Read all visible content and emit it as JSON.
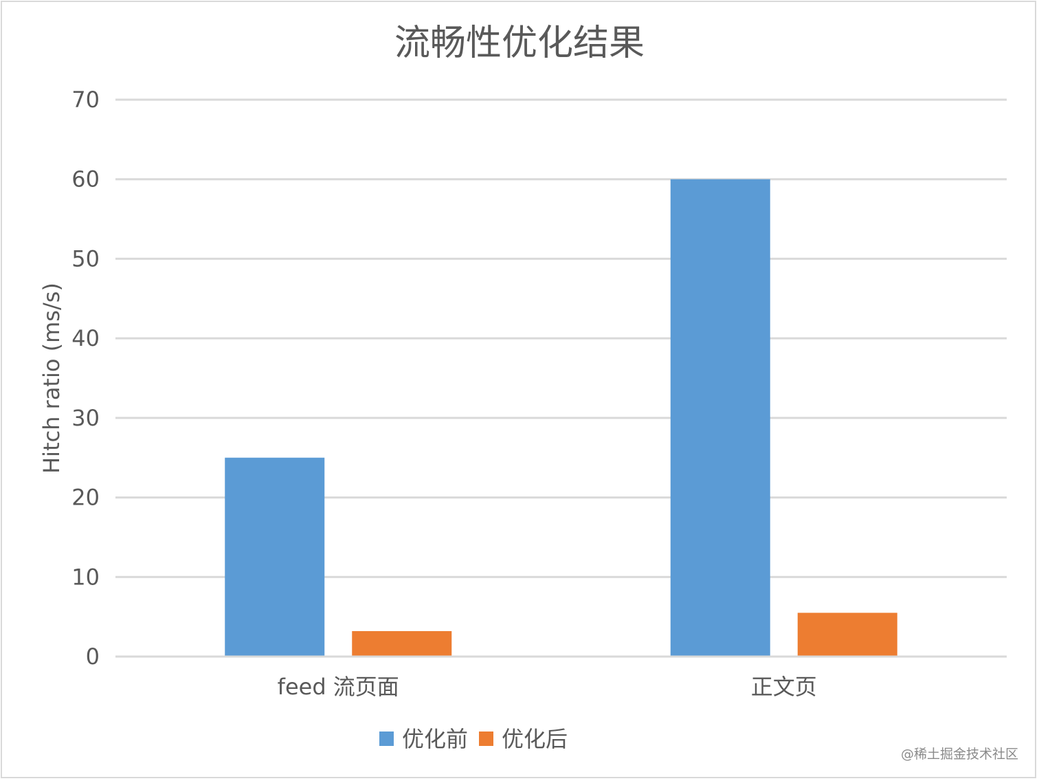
{
  "chart_data": {
    "type": "bar",
    "title": "流畅性优化结果",
    "ylabel": "Hitch ratio (ms/s)",
    "xlabel": "",
    "categories": [
      "feed 流页面",
      "正文页"
    ],
    "series": [
      {
        "name": "优化前",
        "values": [
          25,
          60
        ],
        "color": "#5b9bd5"
      },
      {
        "name": "优化后",
        "values": [
          3.2,
          5.5
        ],
        "color": "#ed7d31"
      }
    ],
    "ylim": [
      0,
      70
    ],
    "yticks": [
      0,
      10,
      20,
      30,
      40,
      50,
      60,
      70
    ],
    "grid": true,
    "legend": "bottom"
  },
  "watermark": "@稀土掘金技术社区"
}
